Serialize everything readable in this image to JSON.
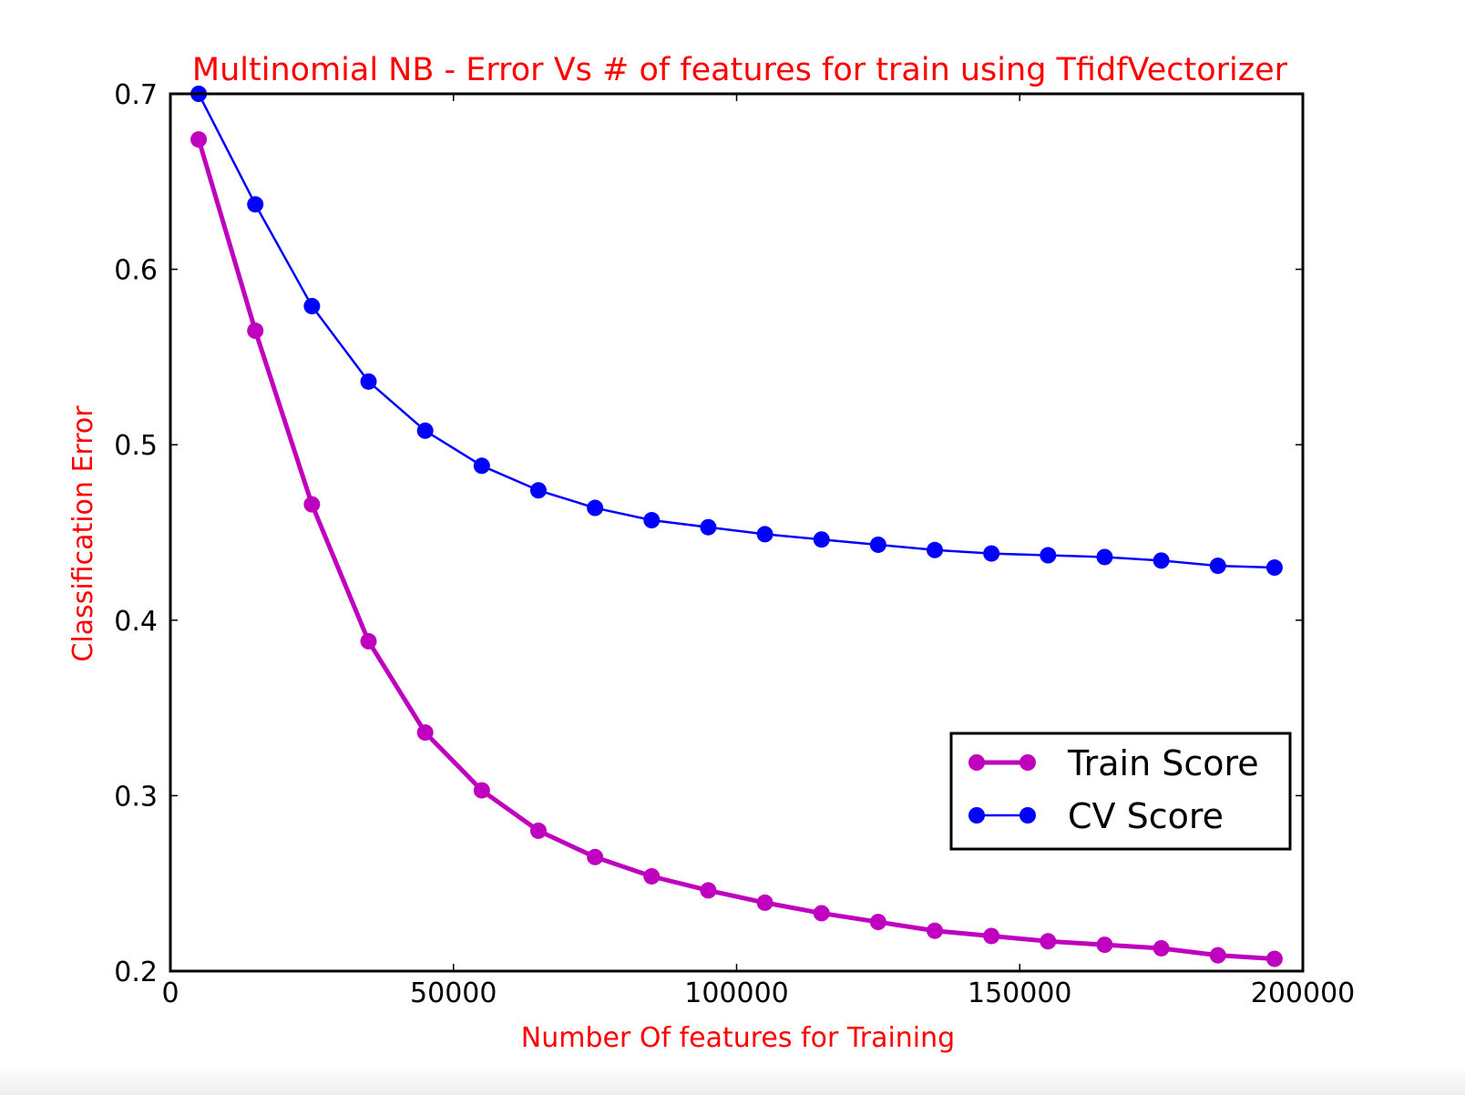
{
  "chart_data": {
    "type": "line",
    "title": "Multinomial NB - Error Vs # of features for train using TfidfVectorizer",
    "xlabel": "Number Of features for Training",
    "ylabel": "Classification Error",
    "xlim": [
      0,
      200000
    ],
    "ylim": [
      0.2,
      0.7
    ],
    "xticks": [
      0,
      50000,
      100000,
      150000,
      200000
    ],
    "xtick_labels": [
      "0",
      "50000",
      "100000",
      "150000",
      "200000"
    ],
    "yticks": [
      0.2,
      0.3,
      0.4,
      0.5,
      0.6,
      0.7
    ],
    "ytick_labels": [
      "0.2",
      "0.3",
      "0.4",
      "0.5",
      "0.6",
      "0.7"
    ],
    "grid": false,
    "legend_position": "lower-right",
    "label_color": "#ff0000",
    "x": [
      5000,
      15000,
      25000,
      35000,
      45000,
      55000,
      65000,
      75000,
      85000,
      95000,
      105000,
      115000,
      125000,
      135000,
      145000,
      155000,
      165000,
      175000,
      185000,
      195000
    ],
    "series": [
      {
        "name": "Train Score",
        "color": "#bf00bf",
        "values": [
          0.674,
          0.565,
          0.466,
          0.388,
          0.336,
          0.303,
          0.28,
          0.265,
          0.254,
          0.246,
          0.239,
          0.233,
          0.228,
          0.223,
          0.22,
          0.217,
          0.215,
          0.213,
          0.209,
          0.207
        ]
      },
      {
        "name": "CV Score",
        "color": "#0000ff",
        "values": [
          0.7,
          0.637,
          0.579,
          0.536,
          0.508,
          0.488,
          0.474,
          0.464,
          0.457,
          0.453,
          0.449,
          0.446,
          0.443,
          0.44,
          0.438,
          0.437,
          0.436,
          0.434,
          0.431,
          0.43
        ]
      }
    ]
  }
}
